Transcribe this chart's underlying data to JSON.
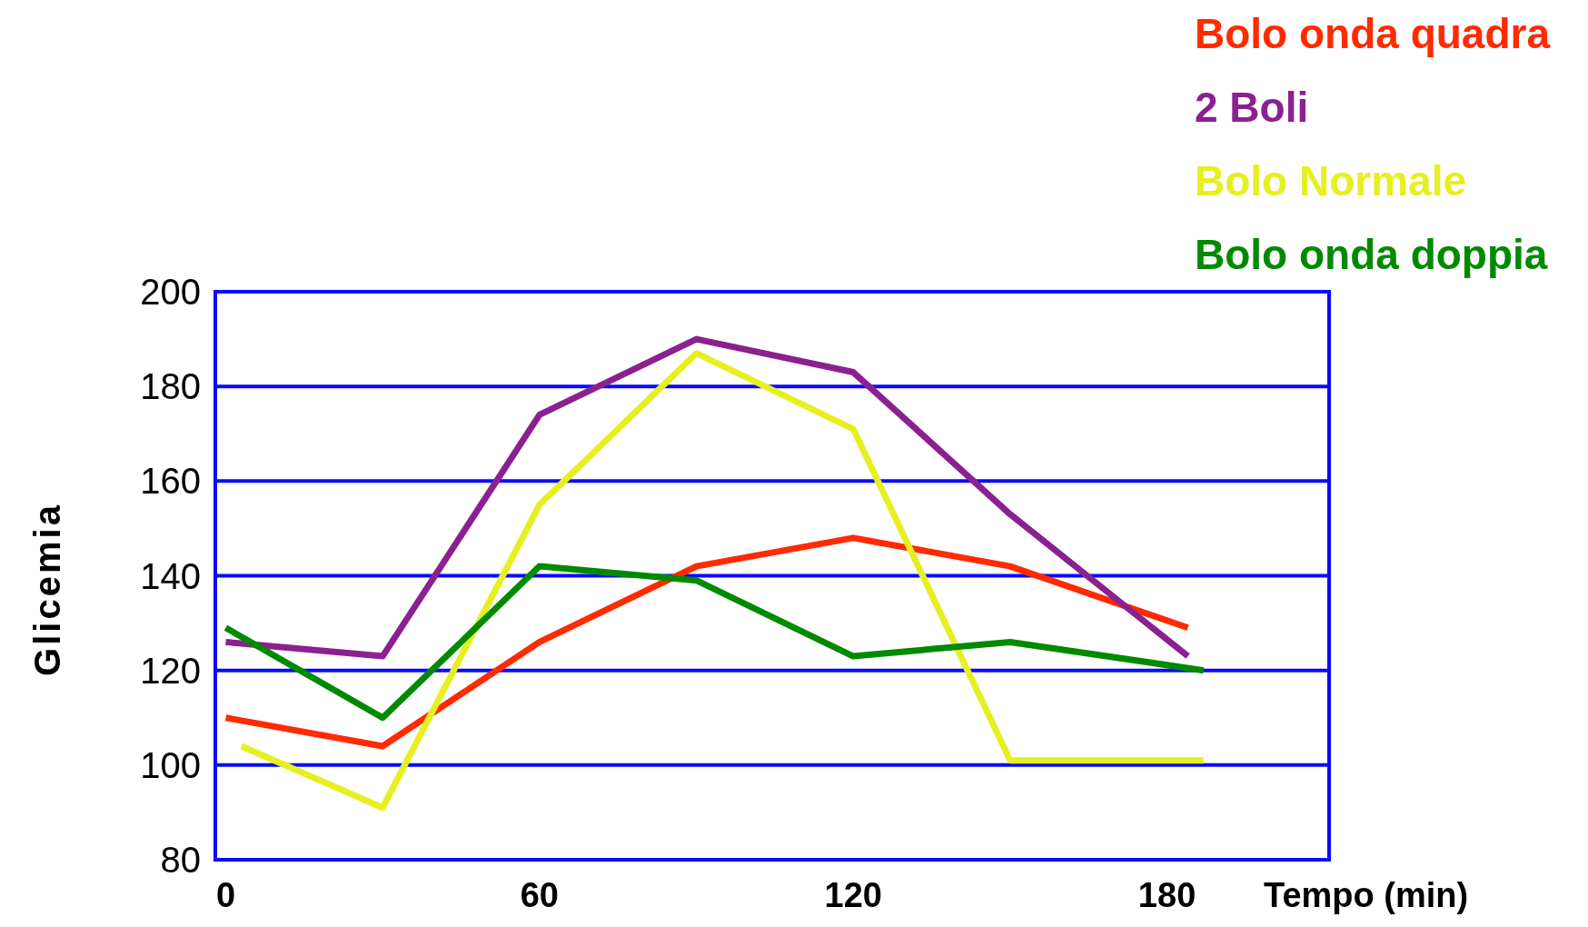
{
  "chart_data": {
    "type": "line",
    "xlabel": "Tempo (min)",
    "ylabel": "Glicemia",
    "xlim": [
      -2,
      211
    ],
    "xticks": [
      0,
      60,
      120,
      180
    ],
    "ylim": [
      80,
      200
    ],
    "yticks": [
      80,
      100,
      120,
      140,
      160,
      180,
      200
    ],
    "grid": "y",
    "legend": "top right",
    "marker": "none",
    "line_style": "solid",
    "series": [
      {
        "name": "Bolo onda quadra",
        "color": "#ff2a00",
        "x": [
          0,
          30,
          60,
          90,
          120,
          150,
          184
        ],
        "values": [
          110,
          104,
          126,
          142,
          148,
          142,
          129
        ]
      },
      {
        "name": "2 Boli",
        "color": "#8b2090",
        "x": [
          0,
          30,
          60,
          90,
          120,
          150,
          184
        ],
        "values": [
          126,
          123,
          174,
          190,
          183,
          153,
          123
        ]
      },
      {
        "name": "Bolo Normale",
        "color": "#e6f020",
        "x": [
          3,
          30,
          60,
          90,
          120,
          150,
          187
        ],
        "values": [
          104,
          91,
          155,
          187,
          171,
          101,
          101
        ]
      },
      {
        "name": "Bolo onda doppia",
        "color": "#008a00",
        "x": [
          0,
          30,
          60,
          90,
          120,
          150,
          187
        ],
        "values": [
          129,
          110,
          142,
          139,
          123,
          126,
          120
        ]
      }
    ]
  }
}
